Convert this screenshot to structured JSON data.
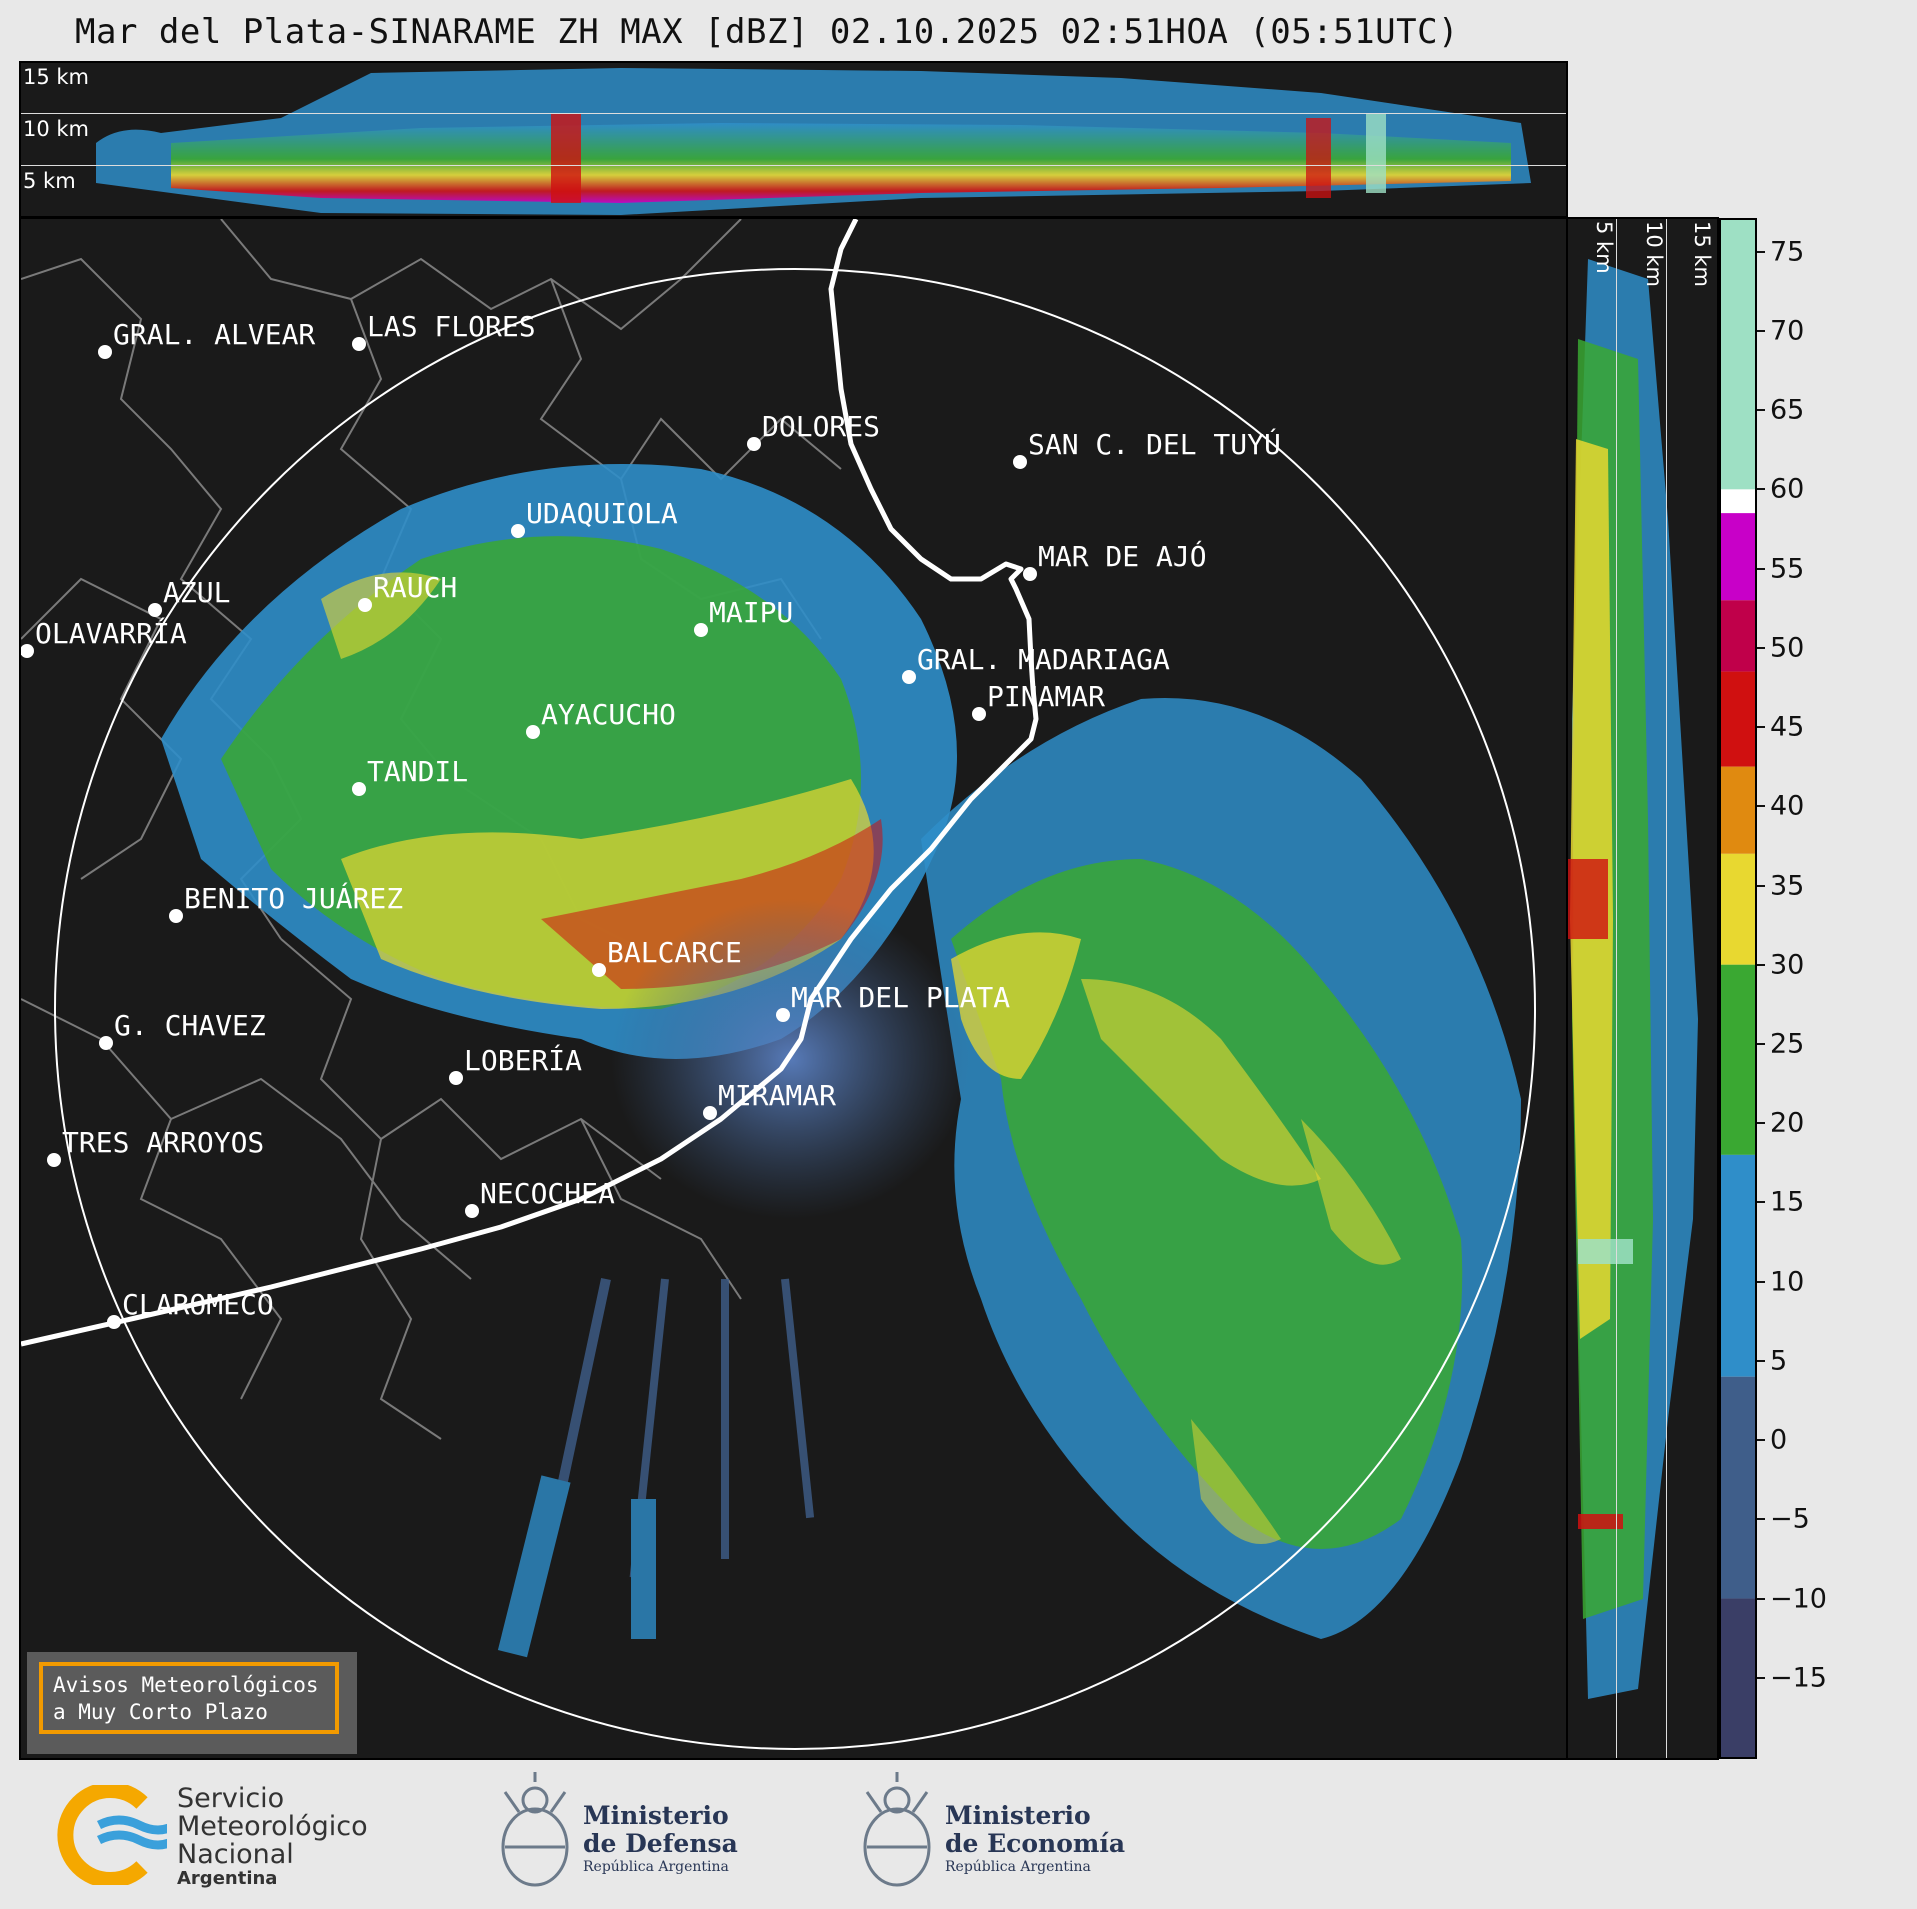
{
  "title": "Mar del Plata-SINARAME ZH MAX [dBZ] 02.10.2025 02:51HOA (05:51UTC)",
  "height_levels": [
    "15 km",
    "10 km",
    "5 km"
  ],
  "colorbar": {
    "ticks": [
      "75",
      "70",
      "65",
      "60",
      "55",
      "50",
      "45",
      "40",
      "35",
      "30",
      "25",
      "20",
      "15",
      "10",
      "5",
      "0",
      "−5",
      "−10",
      "−15"
    ],
    "tick_values": [
      75,
      70,
      65,
      60,
      55,
      50,
      45,
      40,
      35,
      30,
      25,
      20,
      15,
      10,
      5,
      0,
      -5,
      -10,
      -15
    ],
    "range": [
      -20,
      77
    ],
    "colors": [
      {
        "from": 60,
        "to": 77,
        "color": "#9ee0c4"
      },
      {
        "from": 58.5,
        "to": 60,
        "color": "#ffffff"
      },
      {
        "from": 53,
        "to": 58.5,
        "color": "#c800c8"
      },
      {
        "from": 48.5,
        "to": 53,
        "color": "#c0004a"
      },
      {
        "from": 42.5,
        "to": 48.5,
        "color": "#d01010"
      },
      {
        "from": 37,
        "to": 42.5,
        "color": "#e08a10"
      },
      {
        "from": 30,
        "to": 37,
        "color": "#e8d830"
      },
      {
        "from": 18,
        "to": 30,
        "color": "#3aa832"
      },
      {
        "from": 4,
        "to": 18,
        "color": "#2f8ec9"
      },
      {
        "from": -10,
        "to": 4,
        "color": "#3f5e8a"
      },
      {
        "from": -20,
        "to": -10,
        "color": "#3a3e66"
      }
    ]
  },
  "cities": [
    {
      "name": "GRAL. ALVEAR"
    },
    {
      "name": "LAS FLORES"
    },
    {
      "name": "DOLORES"
    },
    {
      "name": "SAN C. DEL TUYÚ"
    },
    {
      "name": "UDAQUIOLA"
    },
    {
      "name": "MAR DE AJÓ"
    },
    {
      "name": "AZUL"
    },
    {
      "name": "RAUCH"
    },
    {
      "name": "OLAVARRÍA"
    },
    {
      "name": "MAIPU"
    },
    {
      "name": "GRAL. MADARIAGA"
    },
    {
      "name": "PINAMAR"
    },
    {
      "name": "AYACUCHO"
    },
    {
      "name": "TANDIL"
    },
    {
      "name": "BENITO JUÁREZ"
    },
    {
      "name": "BALCARCE"
    },
    {
      "name": "MAR DEL PLATA"
    },
    {
      "name": "G. CHAVEZ"
    },
    {
      "name": "LOBERÍA"
    },
    {
      "name": "MIRAMAR"
    },
    {
      "name": "TRES ARROYOS"
    },
    {
      "name": "NECOCHEA"
    },
    {
      "name": "CLAROMECO"
    }
  ],
  "notice": {
    "line1": "Avisos Meteorológicos",
    "line2": "a Muy Corto Plazo"
  },
  "logos": {
    "smn": {
      "line1": "Servicio",
      "line2": "Meteorológico",
      "line3": "Nacional",
      "line4": "Argentina",
      "brand_blue": "#3aa0db",
      "brand_orange": "#f5a800"
    },
    "defensa": {
      "line1": "Ministerio",
      "line2": "de Defensa",
      "line3": "República Argentina"
    },
    "economia": {
      "line1": "Ministerio",
      "line2": "de Economía",
      "line3": "República Argentina"
    }
  }
}
